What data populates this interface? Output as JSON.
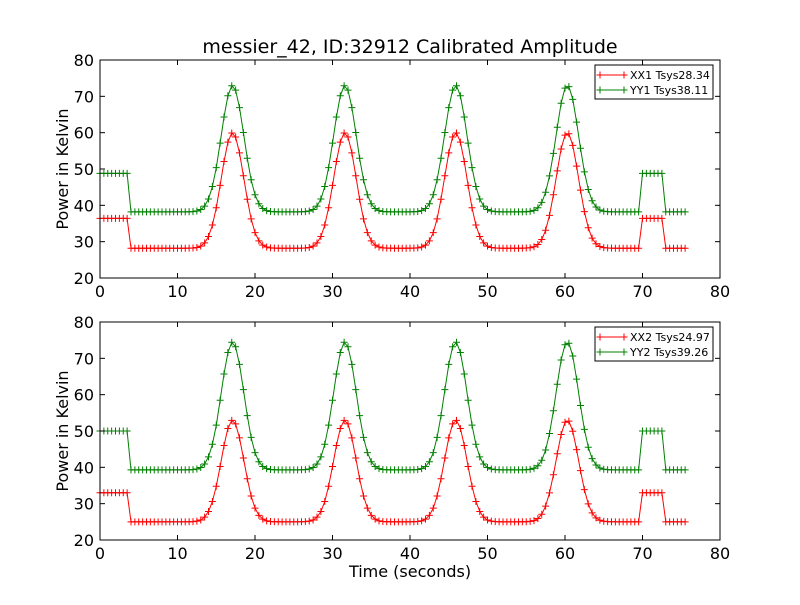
{
  "title": "messier_42, ID:32912 Calibrated Amplitude",
  "colors": {
    "xx": "#ff0000",
    "yy": "#008000",
    "frame": "#000000",
    "background": "#ffffff"
  },
  "chart_data": [
    {
      "type": "line",
      "title": "messier_42, ID:32912 Calibrated Amplitude",
      "ylabel": "Power in Kelvin",
      "xlabel": "",
      "xlim": [
        0,
        80
      ],
      "ylim": [
        20,
        80
      ],
      "xticks": [
        "0",
        "10",
        "20",
        "30",
        "40",
        "50",
        "60",
        "70",
        "80"
      ],
      "yticks": [
        "20",
        "30",
        "40",
        "50",
        "60",
        "70",
        "80"
      ],
      "grid": false,
      "legend_position": "top-right",
      "marker": "+",
      "series": [
        {
          "name": "XX1 Tsys28.34",
          "color": "#ff0000",
          "base": 28.2,
          "cal_level": 36.4,
          "peak": 60.0
        },
        {
          "name": "YY1 Tsys38.11",
          "color": "#008000",
          "base": 38.2,
          "cal_level": 48.8,
          "peak": 73.0
        }
      ],
      "peak_times": [
        17.1,
        31.6,
        45.9,
        60.3
      ],
      "cal_intervals": [
        [
          0,
          3.8
        ],
        [
          69.8,
          72.5
        ]
      ],
      "x_range": [
        0,
        75.6
      ],
      "sample_step": 0.5
    },
    {
      "type": "line",
      "title": "",
      "ylabel": "Power in Kelvin",
      "xlabel": "Time (seconds)",
      "xlim": [
        0,
        80
      ],
      "ylim": [
        20,
        80
      ],
      "xticks": [
        "0",
        "10",
        "20",
        "30",
        "40",
        "50",
        "60",
        "70",
        "80"
      ],
      "yticks": [
        "20",
        "30",
        "40",
        "50",
        "60",
        "70",
        "80"
      ],
      "grid": false,
      "legend_position": "top-right",
      "marker": "+",
      "series": [
        {
          "name": "XX2 Tsys24.97",
          "color": "#ff0000",
          "base": 25.0,
          "cal_level": 33.0,
          "peak": 53.0
        },
        {
          "name": "YY2 Tsys39.26",
          "color": "#008000",
          "base": 39.3,
          "cal_level": 50.0,
          "peak": 74.5
        }
      ],
      "peak_times": [
        17.1,
        31.6,
        45.9,
        60.3
      ],
      "cal_intervals": [
        [
          0,
          3.8
        ],
        [
          69.8,
          72.5
        ]
      ],
      "x_range": [
        0,
        75.6
      ],
      "sample_step": 0.5
    }
  ]
}
